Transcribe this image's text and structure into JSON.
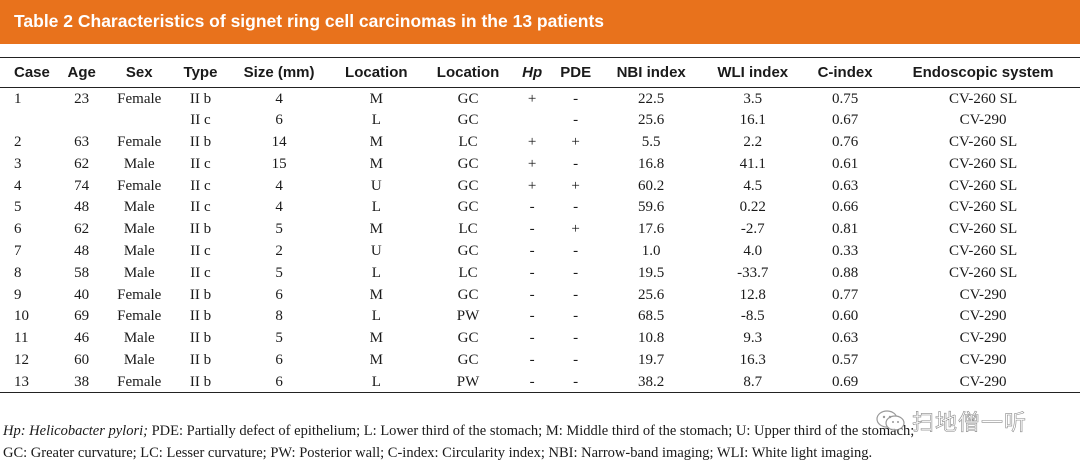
{
  "title": "Table 2  Characteristics of signet ring cell carcinomas in the 13 patients",
  "colors": {
    "title_bar": "#e8721c",
    "title_text": "#ffffff"
  },
  "table": {
    "headers": [
      "Case",
      "Age",
      "Sex",
      "Type",
      "Size (mm)",
      "Location",
      "Location",
      "Hp",
      "PDE",
      "NBI index",
      "WLI index",
      "C-index",
      "Endoscopic system"
    ],
    "rows": [
      [
        "1",
        "23",
        "Female",
        "II b",
        "4",
        "M",
        "GC",
        "+",
        "-",
        "22.5",
        "3.5",
        "0.75",
        "CV-260 SL"
      ],
      [
        "",
        "",
        "",
        "II c",
        "6",
        "L",
        "GC",
        "",
        "-",
        "25.6",
        "16.1",
        "0.67",
        "CV-290"
      ],
      [
        "2",
        "63",
        "Female",
        "II b",
        "14",
        "M",
        "LC",
        "+",
        "+",
        "5.5",
        "2.2",
        "0.76",
        "CV-260 SL"
      ],
      [
        "3",
        "62",
        "Male",
        "II c",
        "15",
        "M",
        "GC",
        "+",
        "-",
        "16.8",
        "41.1",
        "0.61",
        "CV-260 SL"
      ],
      [
        "4",
        "74",
        "Female",
        "II c",
        "4",
        "U",
        "GC",
        "+",
        "+",
        "60.2",
        "4.5",
        "0.63",
        "CV-260 SL"
      ],
      [
        "5",
        "48",
        "Male",
        "II c",
        "4",
        "L",
        "GC",
        "-",
        "-",
        "59.6",
        "0.22",
        "0.66",
        "CV-260 SL"
      ],
      [
        "6",
        "62",
        "Male",
        "II b",
        "5",
        "M",
        "LC",
        "-",
        "+",
        "17.6",
        "-2.7",
        "0.81",
        "CV-260 SL"
      ],
      [
        "7",
        "48",
        "Male",
        "II c",
        "2",
        "U",
        "GC",
        "-",
        "-",
        "1.0",
        "4.0",
        "0.33",
        "CV-260 SL"
      ],
      [
        "8",
        "58",
        "Male",
        "II c",
        "5",
        "L",
        "LC",
        "-",
        "-",
        "19.5",
        "-33.7",
        "0.88",
        "CV-260 SL"
      ],
      [
        "9",
        "40",
        "Female",
        "II b",
        "6",
        "M",
        "GC",
        "-",
        "-",
        "25.6",
        "12.8",
        "0.77",
        "CV-290"
      ],
      [
        "10",
        "69",
        "Female",
        "II b",
        "8",
        "L",
        "PW",
        "-",
        "-",
        "68.5",
        "-8.5",
        "0.60",
        "CV-290"
      ],
      [
        "11",
        "46",
        "Male",
        "II b",
        "5",
        "M",
        "GC",
        "-",
        "-",
        "10.8",
        "9.3",
        "0.63",
        "CV-290"
      ],
      [
        "12",
        "60",
        "Male",
        "II b",
        "6",
        "M",
        "GC",
        "-",
        "-",
        "19.7",
        "16.3",
        "0.57",
        "CV-290"
      ],
      [
        "13",
        "38",
        "Female",
        "II b",
        "6",
        "L",
        "PW",
        "-",
        "-",
        "38.2",
        "8.7",
        "0.69",
        "CV-290"
      ]
    ]
  },
  "footnote": {
    "hp_term": "Hp: Helicobacter pylori;",
    "line1_rest": " PDE: Partially defect of epithelium; L: Lower third of the stomach; M: Middle third of the stomach; U: Upper third of the stomach;",
    "line2": "GC: Greater curvature; LC: Lesser curvature; PW: Posterior wall;  C-index: Circularity index; NBI: Narrow-band imaging; WLI: White light imaging."
  },
  "watermark": {
    "text": "扫地僧一听",
    "icon": "wechat-icon"
  }
}
